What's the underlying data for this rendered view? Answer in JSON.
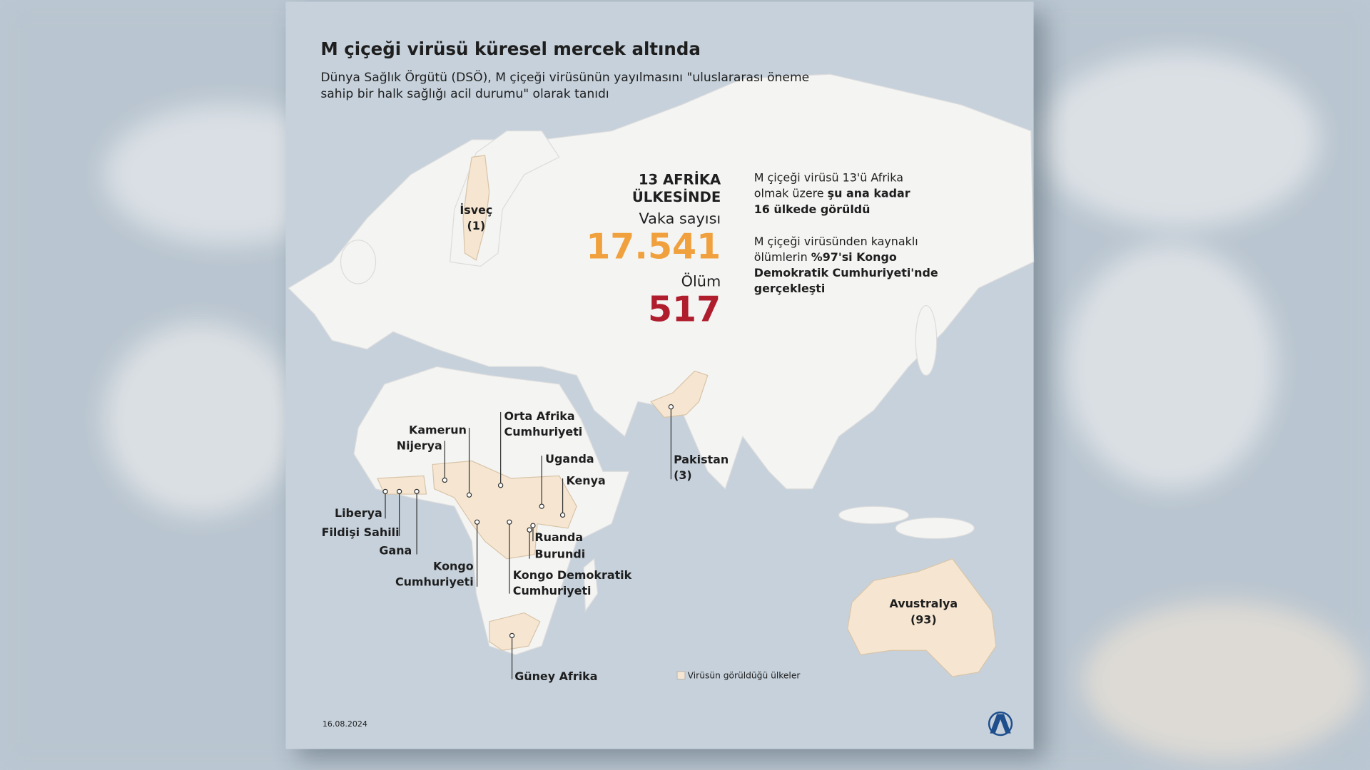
{
  "header": {
    "title": "M çiçeği virüsü küresel mercek altında",
    "subtitle_lines": [
      "Dünya Sağlık Örgütü (DSÖ), M çiçeği virüsünün yayılmasını \"uluslararası öneme",
      "sahip bir halk sağlığı acil durumu\" olarak tanıdı"
    ]
  },
  "stats": {
    "region_lines": [
      "13 AFRİKA",
      "ÜLKESİNDE"
    ],
    "cases_label": "Vaka sayısı",
    "cases": "17.541",
    "deaths_label": "Ölüm",
    "deaths": "517"
  },
  "info": [
    [
      [
        {
          "text": "M çiçeği virüsü 13'ü Afrika",
          "bold": false
        }
      ],
      [
        {
          "text": "olmak üzere ",
          "bold": false
        },
        {
          "text": "şu ana kadar",
          "bold": true
        }
      ],
      [
        {
          "text": "16 ülkede görüldü",
          "bold": true
        }
      ]
    ],
    [
      [
        {
          "text": "M çiçeği virüsünden kaynaklı",
          "bold": false
        }
      ],
      [
        {
          "text": "ölümlerin ",
          "bold": false
        },
        {
          "text": "%97'si Kongo",
          "bold": true
        }
      ],
      [
        {
          "text": "Demokratik Cumhuriyeti'nde",
          "bold": true
        }
      ],
      [
        {
          "text": "gerçekleşti",
          "bold": true
        }
      ]
    ]
  ],
  "countries": [
    {
      "lines": [
        "İsveç",
        "(1)"
      ]
    },
    {
      "lines": [
        "Kamerun"
      ]
    },
    {
      "lines": [
        "Nijerya"
      ]
    },
    {
      "lines": [
        "Orta Afrika",
        "Cumhuriyeti"
      ]
    },
    {
      "lines": [
        "Uganda"
      ]
    },
    {
      "lines": [
        "Kenya"
      ]
    },
    {
      "lines": [
        "Liberya"
      ]
    },
    {
      "lines": [
        "Fildişi Sahili"
      ]
    },
    {
      "lines": [
        "Gana"
      ]
    },
    {
      "lines": [
        "Kongo",
        "Cumhuriyeti"
      ]
    },
    {
      "lines": [
        "Ruanda"
      ]
    },
    {
      "lines": [
        "Burundi"
      ]
    },
    {
      "lines": [
        "Kongo Demokratik",
        "Cumhuriyeti"
      ]
    },
    {
      "lines": [
        "Güney Afrika"
      ]
    },
    {
      "lines": [
        "Pakistan",
        "(3)"
      ]
    },
    {
      "lines": [
        "Avustralya",
        "(93)"
      ]
    }
  ],
  "legend": "Virüsün görüldüğü ülkeler",
  "date": "16.08.2024"
}
